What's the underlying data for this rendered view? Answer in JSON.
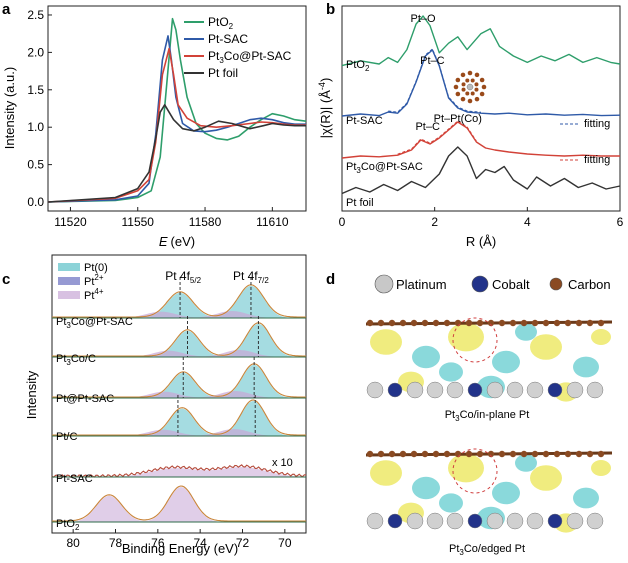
{
  "panels": {
    "a": {
      "letter": "a",
      "chart_data": {
        "type": "line",
        "title": "",
        "xlabel": "E (eV)",
        "xlabel_italic": "E",
        "xlabel_unit": "(eV)",
        "ylabel": "Intensity (a.u.)",
        "xlim": [
          11510,
          11625
        ],
        "ylim": [
          -0.12,
          2.62
        ],
        "xticks": [
          11520,
          11550,
          11580,
          11610
        ],
        "yticks": [
          "0.0",
          "0.5",
          "1.0",
          "1.5",
          "2.0",
          "2.5"
        ],
        "series": [
          {
            "name": "PtO2",
            "legend_base": "PtO",
            "legend_sub": "2",
            "color": "#2e9e6b",
            "x": [
              11510,
              11540,
              11550,
              11556,
              11560,
              11563,
              11565.5,
              11567,
              11569,
              11572,
              11576,
              11580,
              11585,
              11590,
              11595,
              11600,
              11605,
              11610,
              11615,
              11620,
              11625
            ],
            "y": [
              0.0,
              0.02,
              0.06,
              0.15,
              0.6,
              1.6,
              2.45,
              2.3,
              1.9,
              1.4,
              1.05,
              0.92,
              0.85,
              0.83,
              0.88,
              1.0,
              1.1,
              1.18,
              1.15,
              1.1,
              1.08
            ]
          },
          {
            "name": "Pt-SAC",
            "legend_base": "Pt-SAC",
            "legend_sub": "",
            "color": "#2f5aa8",
            "x": [
              11510,
              11540,
              11550,
              11555,
              11558,
              11561,
              11563.5,
              11565,
              11567,
              11570,
              11575,
              11580,
              11585,
              11590,
              11595,
              11600,
              11605,
              11610,
              11615,
              11620,
              11625
            ],
            "y": [
              0.0,
              0.03,
              0.08,
              0.25,
              0.9,
              1.9,
              2.22,
              1.9,
              1.4,
              1.05,
              0.95,
              0.94,
              0.96,
              1.0,
              1.05,
              1.1,
              1.12,
              1.1,
              1.06,
              1.04,
              1.04
            ]
          },
          {
            "name": "Pt3Co@Pt-SAC",
            "legend_base": "Pt",
            "legend_sub": "3",
            "legend_mid": "Co@Pt-SAC",
            "color": "#d24238",
            "x": [
              11510,
              11540,
              11550,
              11555,
              11558,
              11561,
              11564,
              11566,
              11568,
              11572,
              11578,
              11585,
              11592,
              11600,
              11605,
              11610,
              11615,
              11620,
              11625
            ],
            "y": [
              0.0,
              0.05,
              0.15,
              0.3,
              0.8,
              1.7,
              2.05,
              1.7,
              1.3,
              1.12,
              1.02,
              1.0,
              1.02,
              1.05,
              1.07,
              1.06,
              1.04,
              1.03,
              1.03
            ]
          },
          {
            "name": "Pt foil",
            "legend_base": "Pt foil",
            "legend_sub": "",
            "color": "#333333",
            "x": [
              11510,
              11540,
              11550,
              11555,
              11558,
              11560,
              11562,
              11564,
              11566,
              11570,
              11575,
              11580,
              11586,
              11592,
              11600,
              11606,
              11610,
              11615,
              11620,
              11625
            ],
            "y": [
              0.0,
              0.06,
              0.18,
              0.4,
              0.85,
              1.2,
              1.3,
              1.2,
              1.1,
              0.98,
              0.95,
              1.0,
              1.08,
              1.05,
              0.98,
              1.02,
              1.05,
              1.03,
              1.02,
              1.02
            ]
          }
        ]
      }
    },
    "b": {
      "letter": "b",
      "chart_data": {
        "type": "line",
        "xlabel": "R (Å)",
        "ylabel": "|χ(R)| (Å⁻⁴)",
        "ylabel_main": "|χ(R)| (Å",
        "ylabel_sup": "-4",
        "ylabel_close": ")",
        "xlim": [
          0,
          6
        ],
        "xticks": [
          "0",
          "2",
          "4",
          "6"
        ],
        "series": [
          {
            "name": "PtO2",
            "label_base": "PtO",
            "label_sub": "2",
            "color": "#2e9e6b",
            "offset": 3.3,
            "fit": false,
            "x": [
              0,
              0.4,
              0.8,
              1.0,
              1.2,
              1.4,
              1.6,
              1.75,
              1.9,
              2.1,
              2.3,
              2.5,
              2.7,
              3.0,
              3.2,
              3.4,
              3.7,
              4.0,
              4.3,
              4.6,
              4.9,
              5.2,
              5.5,
              5.8,
              6.0
            ],
            "y": [
              0.2,
              0.35,
              0.25,
              0.45,
              0.3,
              0.7,
              1.5,
              1.75,
              1.45,
              0.6,
              0.9,
              1.1,
              0.7,
              1.2,
              1.35,
              0.8,
              0.5,
              0.3,
              0.5,
              0.35,
              0.55,
              0.3,
              0.45,
              0.3,
              0.25
            ]
          },
          {
            "name": "Pt-SAC",
            "label_base": "Pt-SAC",
            "label_sub": "",
            "color": "#2f5aa8",
            "offset": 2.05,
            "fit": true,
            "fit_label": "fitting",
            "x": [
              0,
              0.4,
              0.8,
              1.0,
              1.2,
              1.4,
              1.6,
              1.8,
              1.95,
              2.1,
              2.3,
              2.5,
              2.7,
              3.0,
              3.3,
              3.6,
              4.0,
              4.4,
              4.8,
              5.2,
              5.6,
              6.0
            ],
            "y": [
              0.05,
              0.1,
              0.06,
              0.15,
              0.12,
              0.35,
              0.9,
              1.55,
              1.7,
              1.3,
              0.5,
              0.25,
              0.15,
              0.12,
              0.1,
              0.12,
              0.08,
              0.1,
              0.07,
              0.09,
              0.06,
              0.07
            ]
          },
          {
            "name": "Pt3Co@Pt-SAC",
            "label_base": "Pt",
            "label_sub": "3",
            "label_mid": "Co@Pt-SAC",
            "color": "#d24238",
            "offset": 1.2,
            "fit": true,
            "fit_label": "fitting",
            "x": [
              0,
              0.4,
              0.8,
              1.2,
              1.5,
              1.7,
              1.9,
              2.1,
              2.3,
              2.5,
              2.7,
              2.9,
              3.1,
              3.3,
              3.6,
              4.0,
              4.4,
              4.8,
              5.2,
              5.6,
              6.0
            ],
            "y": [
              0.05,
              0.1,
              0.08,
              0.12,
              0.25,
              0.5,
              0.4,
              0.55,
              0.75,
              0.95,
              0.8,
              0.45,
              0.3,
              0.25,
              0.2,
              0.15,
              0.12,
              0.1,
              0.12,
              0.1,
              0.1
            ]
          },
          {
            "name": "Pt foil",
            "label_base": "Pt foil",
            "label_sub": "",
            "color": "#333333",
            "offset": 0.0,
            "fit": false,
            "x": [
              0,
              0.3,
              0.6,
              0.9,
              1.2,
              1.5,
              1.8,
              2.1,
              2.3,
              2.5,
              2.7,
              2.9,
              3.1,
              3.3,
              3.5,
              3.7,
              4.0,
              4.2,
              4.5,
              4.8,
              5.1,
              5.4,
              5.7,
              6.0
            ],
            "y": [
              0.05,
              0.25,
              0.1,
              0.35,
              0.15,
              0.45,
              0.25,
              0.7,
              1.3,
              1.6,
              1.3,
              0.55,
              0.85,
              0.75,
              0.95,
              0.5,
              0.2,
              0.6,
              0.3,
              0.55,
              0.25,
              0.4,
              0.2,
              0.3
            ]
          }
        ],
        "annotations": [
          {
            "text": "Pt–O",
            "x": 1.75
          },
          {
            "text": "Pt–C",
            "x": 1.95
          },
          {
            "text": "Pt–C",
            "x": 1.85
          },
          {
            "text": "Pt–Pt(Co)",
            "x": 2.5
          }
        ]
      }
    },
    "c": {
      "letter": "c",
      "chart_data": {
        "type": "line",
        "xlabel": "Binding Energy (eV)",
        "ylabel": "Intensity",
        "xlim": [
          81,
          69
        ],
        "xticks": [
          "80",
          "78",
          "76",
          "74",
          "72",
          "70"
        ],
        "legend": [
          {
            "base": "Pt(0)",
            "sup": "",
            "color": "#5bc0c8"
          },
          {
            "base": "Pt",
            "sup": "2+",
            "color": "#6a6fc0"
          },
          {
            "base": "Pt",
            "sup": "4+",
            "color": "#c7a6d6"
          }
        ],
        "peak_labels": [
          {
            "base": "Pt 4f",
            "sub": "5/2",
            "x": 74.8
          },
          {
            "base": "Pt 4f",
            "sub": "7/2",
            "x": 71.6
          }
        ],
        "scale_note": "x 10",
        "spectra": [
          {
            "name": "Pt3Co@Pt-SAC",
            "base": "Pt",
            "sub": "3",
            "mid": "Co@Pt-SAC",
            "pos": [
              74.95,
              71.6
            ],
            "heights": [
              0.72,
              0.92
            ],
            "width": 0.85,
            "fill": "#5bc0c8",
            "dash": [
              74.95,
              71.6
            ],
            "pt4": false
          },
          {
            "name": "Pt3Co/C",
            "base": "Pt",
            "sub": "3",
            "mid": "Co/C",
            "pos": [
              74.6,
              71.25
            ],
            "heights": [
              0.75,
              0.95
            ],
            "width": 0.8,
            "fill": "#5bc0c8",
            "dash": [
              74.6,
              71.25
            ],
            "pt4": false
          },
          {
            "name": "Pt@Pt-SAC",
            "base": "Pt@Pt-SAC",
            "sub": "",
            "mid": "",
            "pos": [
              74.8,
              71.45
            ],
            "heights": [
              0.72,
              0.95
            ],
            "width": 0.8,
            "fill": "#5bc0c8",
            "dash": [
              74.8,
              71.45
            ],
            "pt4": false
          },
          {
            "name": "Pt/C",
            "base": "Pt/C",
            "sub": "",
            "mid": "",
            "pos": [
              74.85,
              71.5
            ],
            "heights": [
              0.78,
              1.0
            ],
            "width": 0.8,
            "fill": "#5bc0c8",
            "dash": [
              75.05,
              71.4
            ],
            "pt4": false
          },
          {
            "name": "Pt-SAC",
            "base": "Pt-SAC",
            "sub": "",
            "mid": "",
            "pos": [
              75.2,
              72.0
            ],
            "heights": [
              0.25,
              0.28
            ],
            "width": 1.6,
            "fill": "#c7a6d6",
            "dash": [],
            "pt4": false
          },
          {
            "name": "PtO2",
            "base": "PtO",
            "sub": "2",
            "mid": "",
            "pos": [
              78.3,
              74.9
            ],
            "heights": [
              0.75,
              1.0
            ],
            "width": 0.85,
            "fill": "#c7a6d6",
            "dash": [],
            "pt4": true
          }
        ]
      }
    },
    "d": {
      "letter": "d",
      "legend": [
        {
          "label": "Platinum",
          "color": "#c8c8c8"
        },
        {
          "label": "Cobalt",
          "color": "#22338a"
        },
        {
          "label": "Carbon",
          "color": "#8a4a22"
        }
      ],
      "caption_top_base": "Pt",
      "caption_top_sub": "3",
      "caption_top_rest": "Co/in-plane Pt",
      "caption_bottom_base": "Pt",
      "caption_bottom_sub": "3",
      "caption_bottom_rest": "Co/edged Pt"
    }
  }
}
